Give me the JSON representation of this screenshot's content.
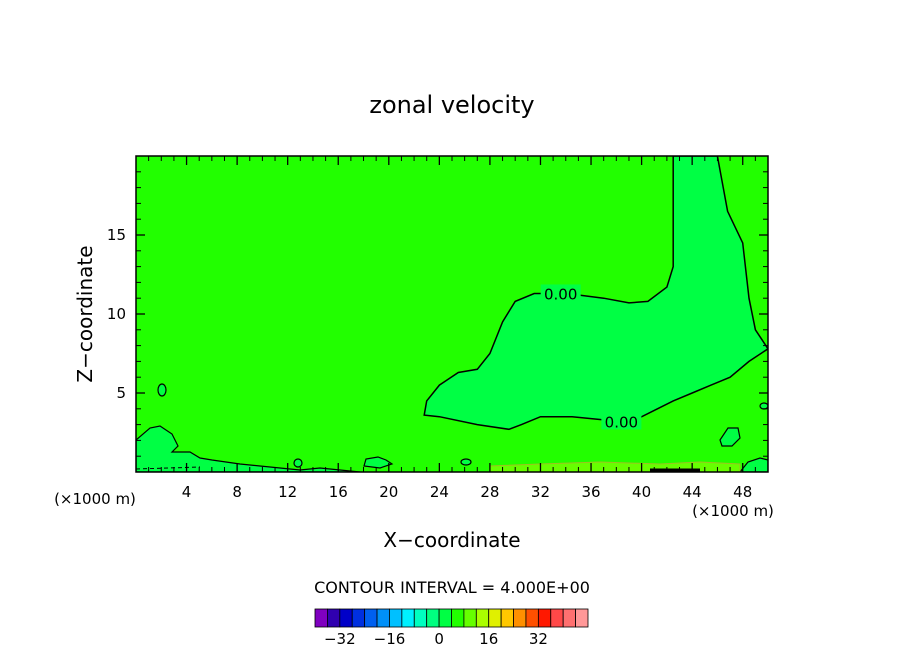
{
  "chart_data": {
    "type": "contour",
    "title": "zonal velocity",
    "xlabel": "X−coordinate",
    "ylabel": "Z−coordinate",
    "x_unit_left": "(×1000 m)",
    "x_unit_right": "(×1000 m)",
    "xlim": [
      0,
      50
    ],
    "ylim": [
      0,
      20
    ],
    "x_ticks": [
      4,
      8,
      12,
      16,
      20,
      24,
      28,
      32,
      36,
      40,
      44,
      48
    ],
    "x_tick_labels": [
      "4",
      "8",
      "12",
      "16",
      "20",
      "24",
      "28",
      "32",
      "36",
      "40",
      "44",
      "48"
    ],
    "y_ticks": [
      5,
      10,
      15
    ],
    "y_tick_labels": [
      "5",
      "10",
      "15"
    ],
    "contour_interval_text": "CONTOUR INTERVAL = 4.000E+00",
    "contour_labels": [
      {
        "text": "0.00",
        "x": 33.6,
        "y": 11.3
      },
      {
        "text": "0.00",
        "x": 38.4,
        "y": 3.2
      }
    ],
    "background_color": "#22ff00",
    "zero_region_color": "#00ff44",
    "zero_contour_region": [
      [
        42.5,
        20
      ],
      [
        46.0,
        20
      ],
      [
        46.8,
        16.5
      ],
      [
        48.0,
        14.5
      ],
      [
        48.5,
        11.0
      ],
      [
        49.0,
        9.0
      ],
      [
        50.0,
        7.8
      ],
      [
        48.5,
        7.0
      ],
      [
        47.0,
        6.0
      ],
      [
        45.5,
        5.5
      ],
      [
        44.0,
        5.0
      ],
      [
        42.5,
        4.5
      ],
      [
        41.0,
        3.9
      ],
      [
        39.5,
        3.3
      ],
      [
        37.0,
        3.3
      ],
      [
        34.5,
        3.5
      ],
      [
        32.0,
        3.5
      ],
      [
        30.5,
        3.0
      ],
      [
        29.5,
        2.7
      ],
      [
        27.0,
        3.0
      ],
      [
        24.0,
        3.5
      ],
      [
        22.8,
        3.6
      ],
      [
        23.0,
        4.5
      ],
      [
        24.0,
        5.5
      ],
      [
        25.5,
        6.3
      ],
      [
        27.0,
        6.5
      ],
      [
        28.0,
        7.5
      ],
      [
        29.0,
        9.5
      ],
      [
        30.0,
        10.8
      ],
      [
        31.5,
        11.3
      ],
      [
        33.0,
        11.3
      ],
      [
        35.0,
        11.2
      ],
      [
        37.0,
        11.0
      ],
      [
        39.0,
        10.7
      ],
      [
        40.5,
        10.8
      ],
      [
        42.0,
        11.7
      ],
      [
        42.5,
        13.0
      ],
      [
        42.5,
        16.0
      ]
    ],
    "colorbar": {
      "colors": [
        "#7f00c0",
        "#3000b0",
        "#0000c8",
        "#0030e0",
        "#0060f0",
        "#0090f8",
        "#00c0ff",
        "#00f0ff",
        "#00ffc0",
        "#00ff80",
        "#00ff44",
        "#22ff00",
        "#66ff00",
        "#aaff00",
        "#e0f000",
        "#ffc800",
        "#ff9000",
        "#ff5000",
        "#ff1800",
        "#ff4848",
        "#ff7070",
        "#ff9898"
      ],
      "tick_labels": [
        "−32",
        "−16",
        "0",
        "16",
        "32"
      ],
      "tick_values": [
        -32,
        -16,
        0,
        16,
        32
      ],
      "range": [
        -40,
        48
      ]
    }
  }
}
